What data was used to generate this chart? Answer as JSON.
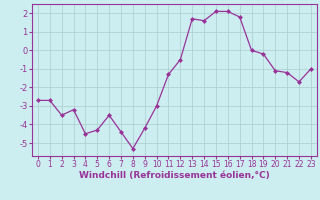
{
  "x": [
    0,
    1,
    2,
    3,
    4,
    5,
    6,
    7,
    8,
    9,
    10,
    11,
    12,
    13,
    14,
    15,
    16,
    17,
    18,
    19,
    20,
    21,
    22,
    23
  ],
  "y": [
    -2.7,
    -2.7,
    -3.5,
    -3.2,
    -4.5,
    -4.3,
    -3.5,
    -4.4,
    -5.3,
    -4.2,
    -3.0,
    -1.3,
    -0.5,
    1.7,
    1.6,
    2.1,
    2.1,
    1.8,
    0.0,
    -0.2,
    -1.1,
    -1.2,
    -1.7,
    -1.0
  ],
  "line_color": "#993399",
  "marker": "D",
  "marker_size": 2,
  "xlabel": "Windchill (Refroidissement éolien,°C)",
  "xlim": [
    -0.5,
    23.5
  ],
  "ylim": [
    -5.7,
    2.5
  ],
  "yticks": [
    -5,
    -4,
    -3,
    -2,
    -1,
    0,
    1,
    2
  ],
  "xticks": [
    0,
    1,
    2,
    3,
    4,
    5,
    6,
    7,
    8,
    9,
    10,
    11,
    12,
    13,
    14,
    15,
    16,
    17,
    18,
    19,
    20,
    21,
    22,
    23
  ],
  "background_color": "#cceef0",
  "grid_color": "#aacccc",
  "font_color": "#993399",
  "tick_fontsize": 5.5,
  "xlabel_fontsize": 6.5
}
